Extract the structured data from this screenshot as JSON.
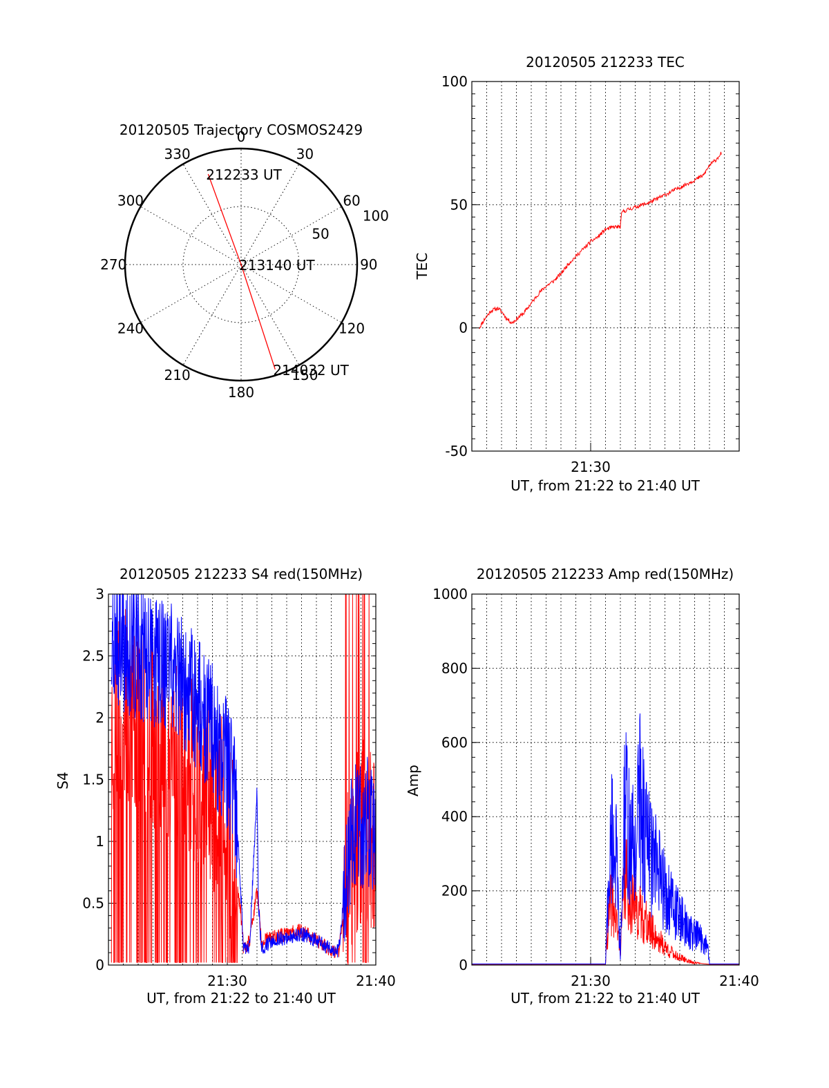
{
  "chart_data": [
    {
      "id": "trajectory",
      "type": "polar",
      "title": "20120505 Trajectory COSMOS2429",
      "angle_labels": [
        "0",
        "30",
        "60",
        "90",
        "120",
        "150",
        "180",
        "210",
        "240",
        "270",
        "300",
        "330"
      ],
      "radius_labels": [
        "50",
        "100"
      ],
      "series": [
        {
          "color": "#ff0000",
          "points": [
            {
              "label": "212233 UT",
              "azimuth": 340,
              "radius": 83
            },
            {
              "label": "213140 UT",
              "azimuth": 0,
              "radius": 0
            },
            {
              "label": "214032 UT",
              "azimuth": 162,
              "radius": 95
            }
          ]
        }
      ]
    },
    {
      "id": "tec",
      "type": "line",
      "title": "20120505 212233 TEC",
      "xlabel": "UT, from 21:22 to 21:40 UT",
      "ylabel": "TEC",
      "xlim": [
        0,
        18
      ],
      "ylim": [
        -50,
        100
      ],
      "x_ticks": [
        {
          "value": 8,
          "label": "21:30"
        }
      ],
      "y_ticks": [
        "-50",
        "0",
        "50",
        "100"
      ],
      "series": [
        {
          "color": "#ff0000",
          "x": [
            0.5,
            0.9,
            1.3,
            1.75,
            2.1,
            2.3,
            2.7,
            3.1,
            3.5,
            4.0,
            4.5,
            5.0,
            5.5,
            6.0,
            6.5,
            7.0,
            7.5,
            8.0,
            8.5,
            9.0,
            9.6,
            10.0,
            10.1,
            10.5,
            12.0,
            14.0,
            15.0,
            15.6,
            16.0,
            16.4,
            16.8
          ],
          "y": [
            0,
            4,
            7,
            8,
            6,
            4,
            2,
            4,
            6,
            10,
            14,
            17,
            19,
            22,
            26,
            29,
            32,
            35,
            37,
            40,
            41,
            41,
            47,
            48,
            51,
            57,
            60,
            62,
            66,
            68,
            71
          ]
        }
      ]
    },
    {
      "id": "s4",
      "type": "line",
      "title": "20120505 212233 S4 red(150MHz)",
      "xlabel": "UT, from 21:22 to 21:40 UT",
      "ylabel": "S4",
      "xlim": [
        0,
        18
      ],
      "ylim": [
        0,
        3
      ],
      "x_ticks": [
        {
          "value": 8,
          "label": "21:30"
        },
        {
          "value": 18,
          "label": "21:40"
        }
      ],
      "y_ticks": [
        "0",
        "0.5",
        "1",
        "1.5",
        "2",
        "2.5",
        "3"
      ],
      "series": [
        {
          "color": "#ff0000",
          "x": [
            0.2,
            1,
            2,
            3,
            4,
            5,
            6,
            7,
            8,
            8.6,
            8.9,
            9.1,
            9.5,
            10.0,
            10.1,
            10.3,
            10.5,
            11.0,
            12.0,
            13.0,
            14.0,
            15.0,
            15.5,
            15.9,
            16.5,
            17.2,
            18.0
          ],
          "y": [
            1.9,
            2.1,
            2.0,
            1.9,
            1.8,
            1.7,
            1.6,
            1.4,
            1.1,
            0.7,
            0.45,
            0.12,
            0.2,
            0.6,
            0.5,
            0.15,
            0.2,
            0.22,
            0.25,
            0.28,
            0.2,
            0.12,
            0.1,
            0.5,
            1.0,
            1.05,
            1.1
          ]
        },
        {
          "color": "#0000ff",
          "x": [
            0.2,
            1,
            2,
            3,
            4,
            5,
            6,
            7,
            8,
            8.6,
            8.9,
            9.1,
            9.5,
            10.0,
            10.1,
            10.3,
            10.5,
            11.0,
            12.0,
            13.0,
            14.0,
            15.0,
            15.5,
            15.9,
            16.5,
            17.2,
            18.0
          ],
          "y": [
            2.7,
            2.6,
            2.5,
            2.45,
            2.4,
            2.3,
            2.1,
            1.9,
            1.6,
            1.3,
            0.6,
            0.12,
            0.15,
            1.4,
            0.5,
            0.12,
            0.15,
            0.2,
            0.22,
            0.25,
            0.2,
            0.12,
            0.12,
            0.6,
            1.1,
            1.15,
            1.15
          ]
        }
      ]
    },
    {
      "id": "amp",
      "type": "line",
      "title": "20120505 212233 Amp red(150MHz)",
      "xlabel": "UT, from 21:22 to 21:40 UT",
      "ylabel": "Amp",
      "xlim": [
        0,
        18
      ],
      "ylim": [
        0,
        1000
      ],
      "x_ticks": [
        {
          "value": 8,
          "label": "21:30"
        },
        {
          "value": 18,
          "label": "21:40"
        }
      ],
      "y_ticks": [
        "0",
        "200",
        "400",
        "600",
        "800",
        "1000"
      ],
      "series": [
        {
          "color": "#ff0000",
          "x": [
            0,
            9.0,
            9.1,
            9.4,
            9.7,
            10.0,
            10.3,
            10.6,
            11.0,
            11.5,
            12.0,
            12.5,
            13.0,
            13.5,
            14.0,
            14.5,
            15.0,
            15.5,
            16.0,
            18.0
          ],
          "y": [
            2,
            2,
            100,
            220,
            150,
            60,
            300,
            240,
            200,
            160,
            120,
            90,
            60,
            40,
            25,
            15,
            8,
            4,
            2,
            2
          ]
        },
        {
          "color": "#0000ff",
          "x": [
            0,
            9.0,
            9.1,
            9.4,
            9.7,
            10.0,
            10.3,
            10.6,
            11.0,
            11.3,
            11.6,
            12.0,
            12.5,
            13.0,
            13.5,
            14.0,
            14.5,
            15.0,
            15.5,
            15.9,
            16.0,
            18.0
          ],
          "y": [
            3,
            3,
            150,
            450,
            380,
            20,
            550,
            420,
            380,
            600,
            450,
            380,
            310,
            250,
            200,
            160,
            120,
            100,
            90,
            60,
            3,
            3
          ]
        }
      ]
    }
  ]
}
